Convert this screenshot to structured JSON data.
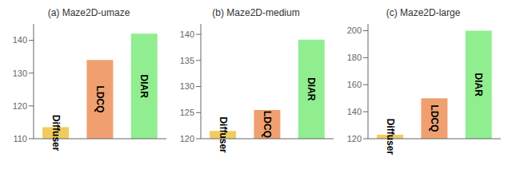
{
  "chart_data": [
    {
      "type": "bar",
      "title": "(a) Maze2D-umaze",
      "categories": [
        "Diffuser",
        "LDCQ",
        "DIAR"
      ],
      "values": [
        113.5,
        134.0,
        142.0
      ],
      "colors": [
        "#f0cc60",
        "#f0a070",
        "#90ee90"
      ],
      "ylim": [
        110,
        145
      ],
      "yticks": [
        110,
        120,
        130,
        140
      ],
      "grid": false,
      "tick_labels": "y"
    },
    {
      "type": "bar",
      "title": "(b) Maze2D-medium",
      "categories": [
        "Diffuser",
        "LDCQ",
        "DIAR"
      ],
      "values": [
        121.5,
        125.5,
        139.0
      ],
      "colors": [
        "#f0cc60",
        "#f0a070",
        "#90ee90"
      ],
      "ylim": [
        120,
        142
      ],
      "yticks": [
        120,
        125,
        130,
        135,
        140
      ],
      "grid": false,
      "tick_labels": "y"
    },
    {
      "type": "bar",
      "title": "(c) Maze2D-large",
      "categories": [
        "Diffuser",
        "LDCQ",
        "DIAR"
      ],
      "values": [
        123.0,
        150.0,
        200.0
      ],
      "colors": [
        "#f0cc60",
        "#f0a070",
        "#90ee90"
      ],
      "ylim": [
        120,
        205
      ],
      "yticks": [
        120,
        140,
        160,
        180,
        200
      ],
      "grid": false,
      "tick_labels": "y"
    }
  ]
}
